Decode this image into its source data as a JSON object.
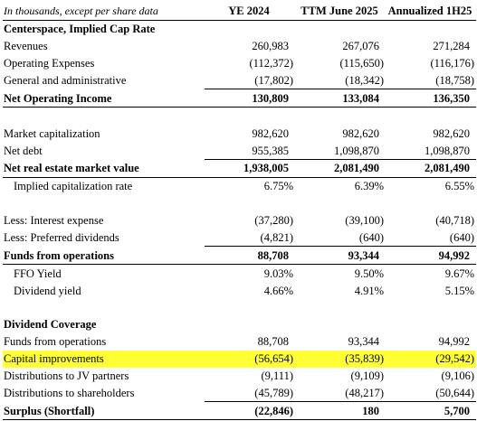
{
  "table": {
    "caption": "In thousands, except per share data",
    "columns": [
      "YE 2024",
      "TTM June 2025",
      "Annualized 1H25"
    ],
    "sections": [
      {
        "rows": [
          {
            "label": "Centerspace, Implied Cap Rate",
            "style": "bold"
          },
          {
            "label": "Revenues",
            "values": [
              "260,983",
              "267,076",
              "271,284"
            ]
          },
          {
            "label": "Operating Expenses",
            "values": [
              "(112,372)",
              "(115,650)",
              "(116,176)"
            ]
          },
          {
            "label": "General and administrative",
            "values": [
              "(17,802)",
              "(18,342)",
              "(18,758)"
            ]
          },
          {
            "label": "Net Operating Income",
            "style": "total",
            "values": [
              "130,809",
              "133,084",
              "136,350"
            ]
          }
        ]
      },
      {
        "rows": [
          {
            "label": "Market capitalization",
            "values": [
              "982,620",
              "982,620",
              "982,620"
            ]
          },
          {
            "label": "Net debt",
            "values": [
              "955,385",
              "1,098,870",
              "1,098,870"
            ]
          },
          {
            "label": "Net real estate market value",
            "style": "total",
            "values": [
              "1,938,005",
              "2,081,490",
              "2,081,490"
            ]
          },
          {
            "label": "Implied capitalization rate",
            "style": "indent",
            "values": [
              "6.75%",
              "6.39%",
              "6.55%"
            ]
          }
        ]
      },
      {
        "rows": [
          {
            "label": "Less: Interest expense",
            "values": [
              "(37,280)",
              "(39,100)",
              "(40,718)"
            ]
          },
          {
            "label": "Less: Preferred dividends",
            "values": [
              "(4,821)",
              "(640)",
              "(640)"
            ]
          },
          {
            "label": "Funds from operations",
            "style": "total",
            "values": [
              "88,708",
              "93,344",
              "94,992"
            ]
          },
          {
            "label": "FFO Yield",
            "style": "indent",
            "values": [
              "9.03%",
              "9.50%",
              "9.67%"
            ]
          },
          {
            "label": "Dividend yield",
            "style": "indent",
            "values": [
              "4.66%",
              "4.91%",
              "5.15%"
            ]
          }
        ]
      },
      {
        "rows": [
          {
            "label": "Dividend Coverage",
            "style": "bold"
          },
          {
            "label": "Funds from operations",
            "values": [
              "88,708",
              "93,344",
              "94,992"
            ]
          },
          {
            "label": "Capital improvements",
            "style": "highlight",
            "values": [
              "(56,654)",
              "(35,839)",
              "(29,542)"
            ]
          },
          {
            "label": "Distributions to JV partners",
            "values": [
              "(9,111)",
              "(9,109)",
              "(9,106)"
            ]
          },
          {
            "label": "Distributions to shareholders",
            "values": [
              "(45,789)",
              "(48,217)",
              "(50,644)"
            ]
          },
          {
            "label": "Surplus (Shortfall)",
            "style": "total",
            "values": [
              "(22,846)",
              "180",
              "5,700"
            ]
          }
        ]
      }
    ]
  }
}
